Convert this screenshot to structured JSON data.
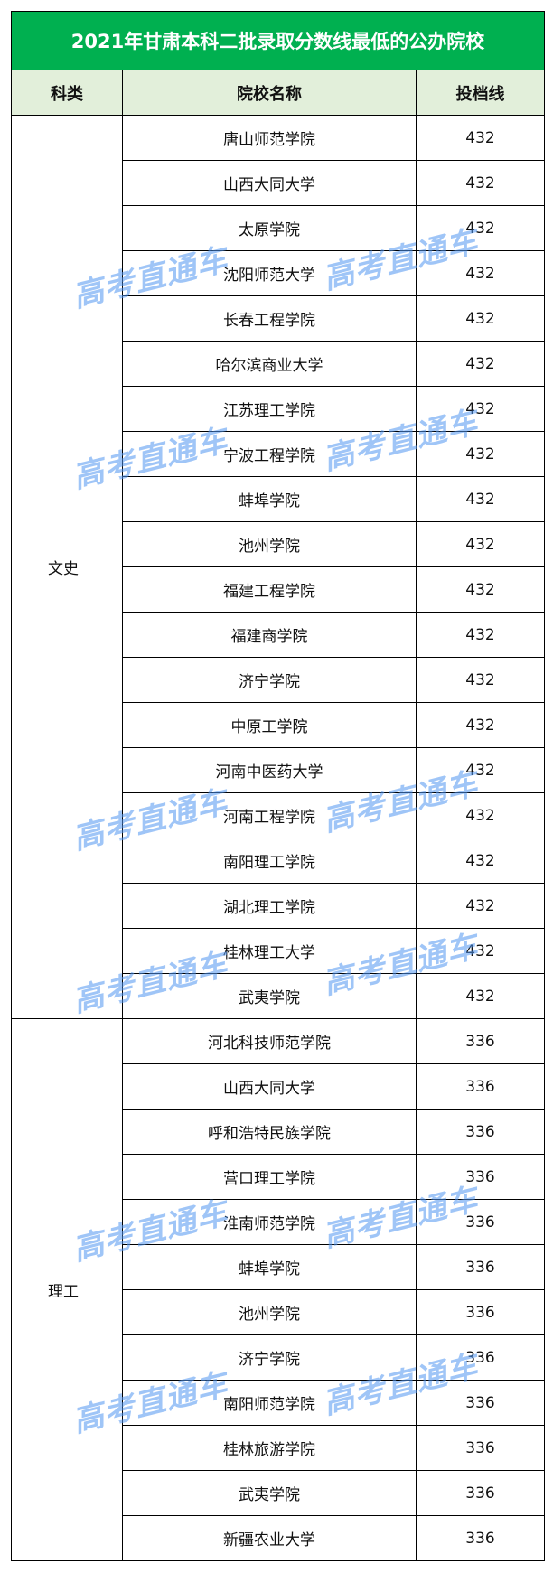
{
  "title": "2021年甘肃本科二批录取分数线最低的公办院校",
  "headers": [
    "科类",
    "院校名称",
    "投档线"
  ],
  "groups": [
    {
      "category": "文史",
      "rows": [
        [
          "唐山师范学院",
          "432"
        ],
        [
          "山西大同大学",
          "432"
        ],
        [
          "太原学院",
          "432"
        ],
        [
          "沈阳师范大学",
          "432"
        ],
        [
          "长春工程学院",
          "432"
        ],
        [
          "哈尔滨商业大学",
          "432"
        ],
        [
          "江苏理工学院",
          "432"
        ],
        [
          "宁波工程学院",
          "432"
        ],
        [
          "蚌埠学院",
          "432"
        ],
        [
          "池州学院",
          "432"
        ],
        [
          "福建工程学院",
          "432"
        ],
        [
          "福建商学院",
          "432"
        ],
        [
          "济宁学院",
          "432"
        ],
        [
          "中原工学院",
          "432"
        ],
        [
          "河南中医药大学",
          "432"
        ],
        [
          "河南工程学院",
          "432"
        ],
        [
          "南阳理工学院",
          "432"
        ],
        [
          "湖北理工学院",
          "432"
        ],
        [
          "桂林理工大学",
          "432"
        ],
        [
          "武夷学院",
          "432"
        ]
      ]
    },
    {
      "category": "理工",
      "rows": [
        [
          "河北科技师范学院",
          "336"
        ],
        [
          "山西大同大学",
          "336"
        ],
        [
          "呼和浩特民族学院",
          "336"
        ],
        [
          "营口理工学院",
          "336"
        ],
        [
          "淮南师范学院",
          "336"
        ],
        [
          "蚌埠学院",
          "336"
        ],
        [
          "池州学院",
          "336"
        ],
        [
          "济宁学院",
          "336"
        ],
        [
          "南阳师范学院",
          "336"
        ],
        [
          "桂林旅游学院",
          "336"
        ],
        [
          "武夷学院",
          "336"
        ],
        [
          "新疆农业大学",
          "336"
        ]
      ]
    }
  ],
  "watermark": "高考直通车",
  "colors": {
    "title_bg": "#00b050",
    "header_bg": "#e2efda",
    "watermark": "#5096f0"
  }
}
